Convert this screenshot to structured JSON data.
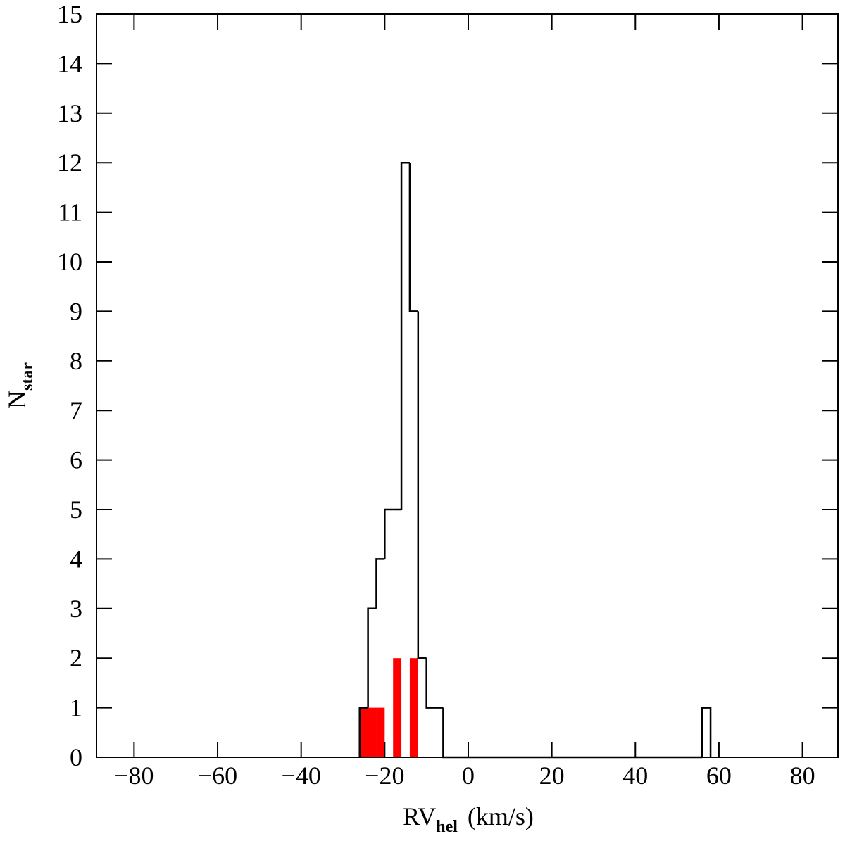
{
  "chart_data": {
    "type": "histogram",
    "x_label": {
      "main": "RV",
      "sub": "hel",
      "unit": "(km/s)"
    },
    "y_label": {
      "main": "N",
      "sub": "star"
    },
    "bins": [
      -26,
      -24,
      -22,
      -20,
      -18,
      -16,
      -14,
      -12,
      -10,
      -8,
      -6,
      -4,
      -2,
      0,
      2,
      4,
      6,
      8,
      10,
      12,
      14,
      16,
      18,
      20,
      22,
      24,
      26,
      28,
      30,
      32,
      34,
      36,
      38,
      40,
      42,
      44,
      46,
      48,
      50,
      52,
      54,
      56,
      58
    ],
    "series": [
      {
        "style": "step",
        "color": "#000000",
        "values": [
          1,
          3,
          4,
          5,
          5,
          12,
          9,
          2,
          1,
          1,
          0,
          0,
          0,
          0,
          0,
          0,
          0,
          0,
          0,
          0,
          0,
          0,
          0,
          0,
          0,
          0,
          0,
          0,
          0,
          0,
          0,
          0,
          0,
          0,
          0,
          0,
          0,
          0,
          0,
          0,
          0,
          1
        ]
      },
      {
        "style": "filled",
        "color": "#ff0000",
        "values": [
          1,
          1,
          1,
          0,
          2,
          0,
          2,
          0,
          0,
          0,
          0,
          0,
          0,
          0,
          0,
          0,
          0,
          0,
          0,
          0,
          0,
          0,
          0,
          0,
          0,
          0,
          0,
          0,
          0,
          0,
          0,
          0,
          0,
          0,
          0,
          0,
          0,
          0,
          0,
          0,
          0,
          0
        ]
      }
    ],
    "xlim": [
      -89,
      88.5
    ],
    "ylim": [
      0,
      15
    ],
    "xticks": [
      {
        "value": -80,
        "label": "−80"
      },
      {
        "value": -60,
        "label": "−60"
      },
      {
        "value": -40,
        "label": "−40"
      },
      {
        "value": -20,
        "label": "−20"
      },
      0,
      20,
      40,
      60,
      80
    ],
    "yticks": [
      0,
      1,
      2,
      3,
      4,
      5,
      6,
      7,
      8,
      9,
      10,
      11,
      12,
      13,
      14,
      15
    ]
  }
}
